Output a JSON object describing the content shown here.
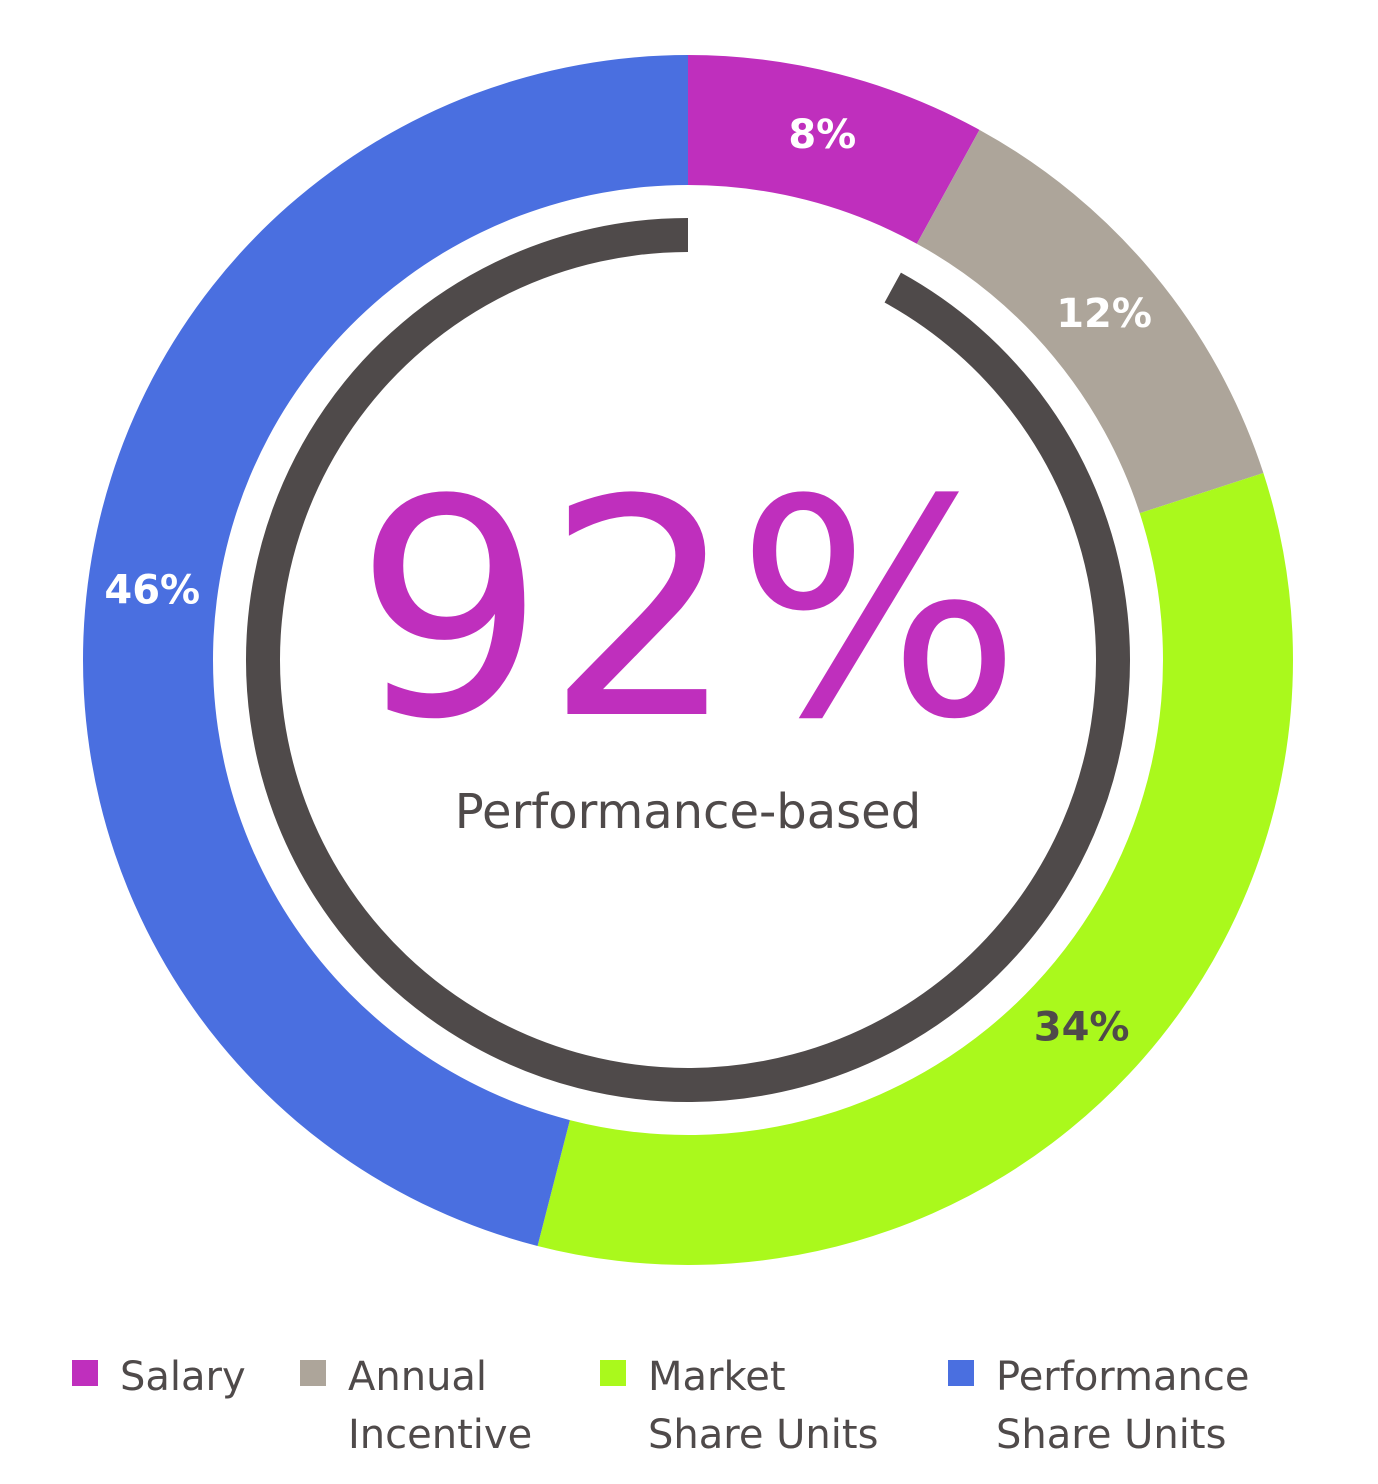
{
  "chart_data": {
    "type": "donut",
    "categories": [
      "Salary",
      "Annual Incentive",
      "Market Share Units",
      "Performance Share Units"
    ],
    "values": [
      8,
      12,
      34,
      46
    ],
    "value_labels": [
      "8%",
      "12%",
      "34%",
      "46%"
    ],
    "colors": [
      "#bf2fbd",
      "#ada59a",
      "#aaf91c",
      "#4a6fe0"
    ],
    "label_colors": [
      "#ffffff",
      "#ffffff",
      "#4f4a4a",
      "#ffffff"
    ],
    "center": {
      "value": 92,
      "label": "92%",
      "caption": "Performance-based",
      "label_color": "#bf2fbd",
      "ring_color": "#4f4a4a"
    }
  }
}
